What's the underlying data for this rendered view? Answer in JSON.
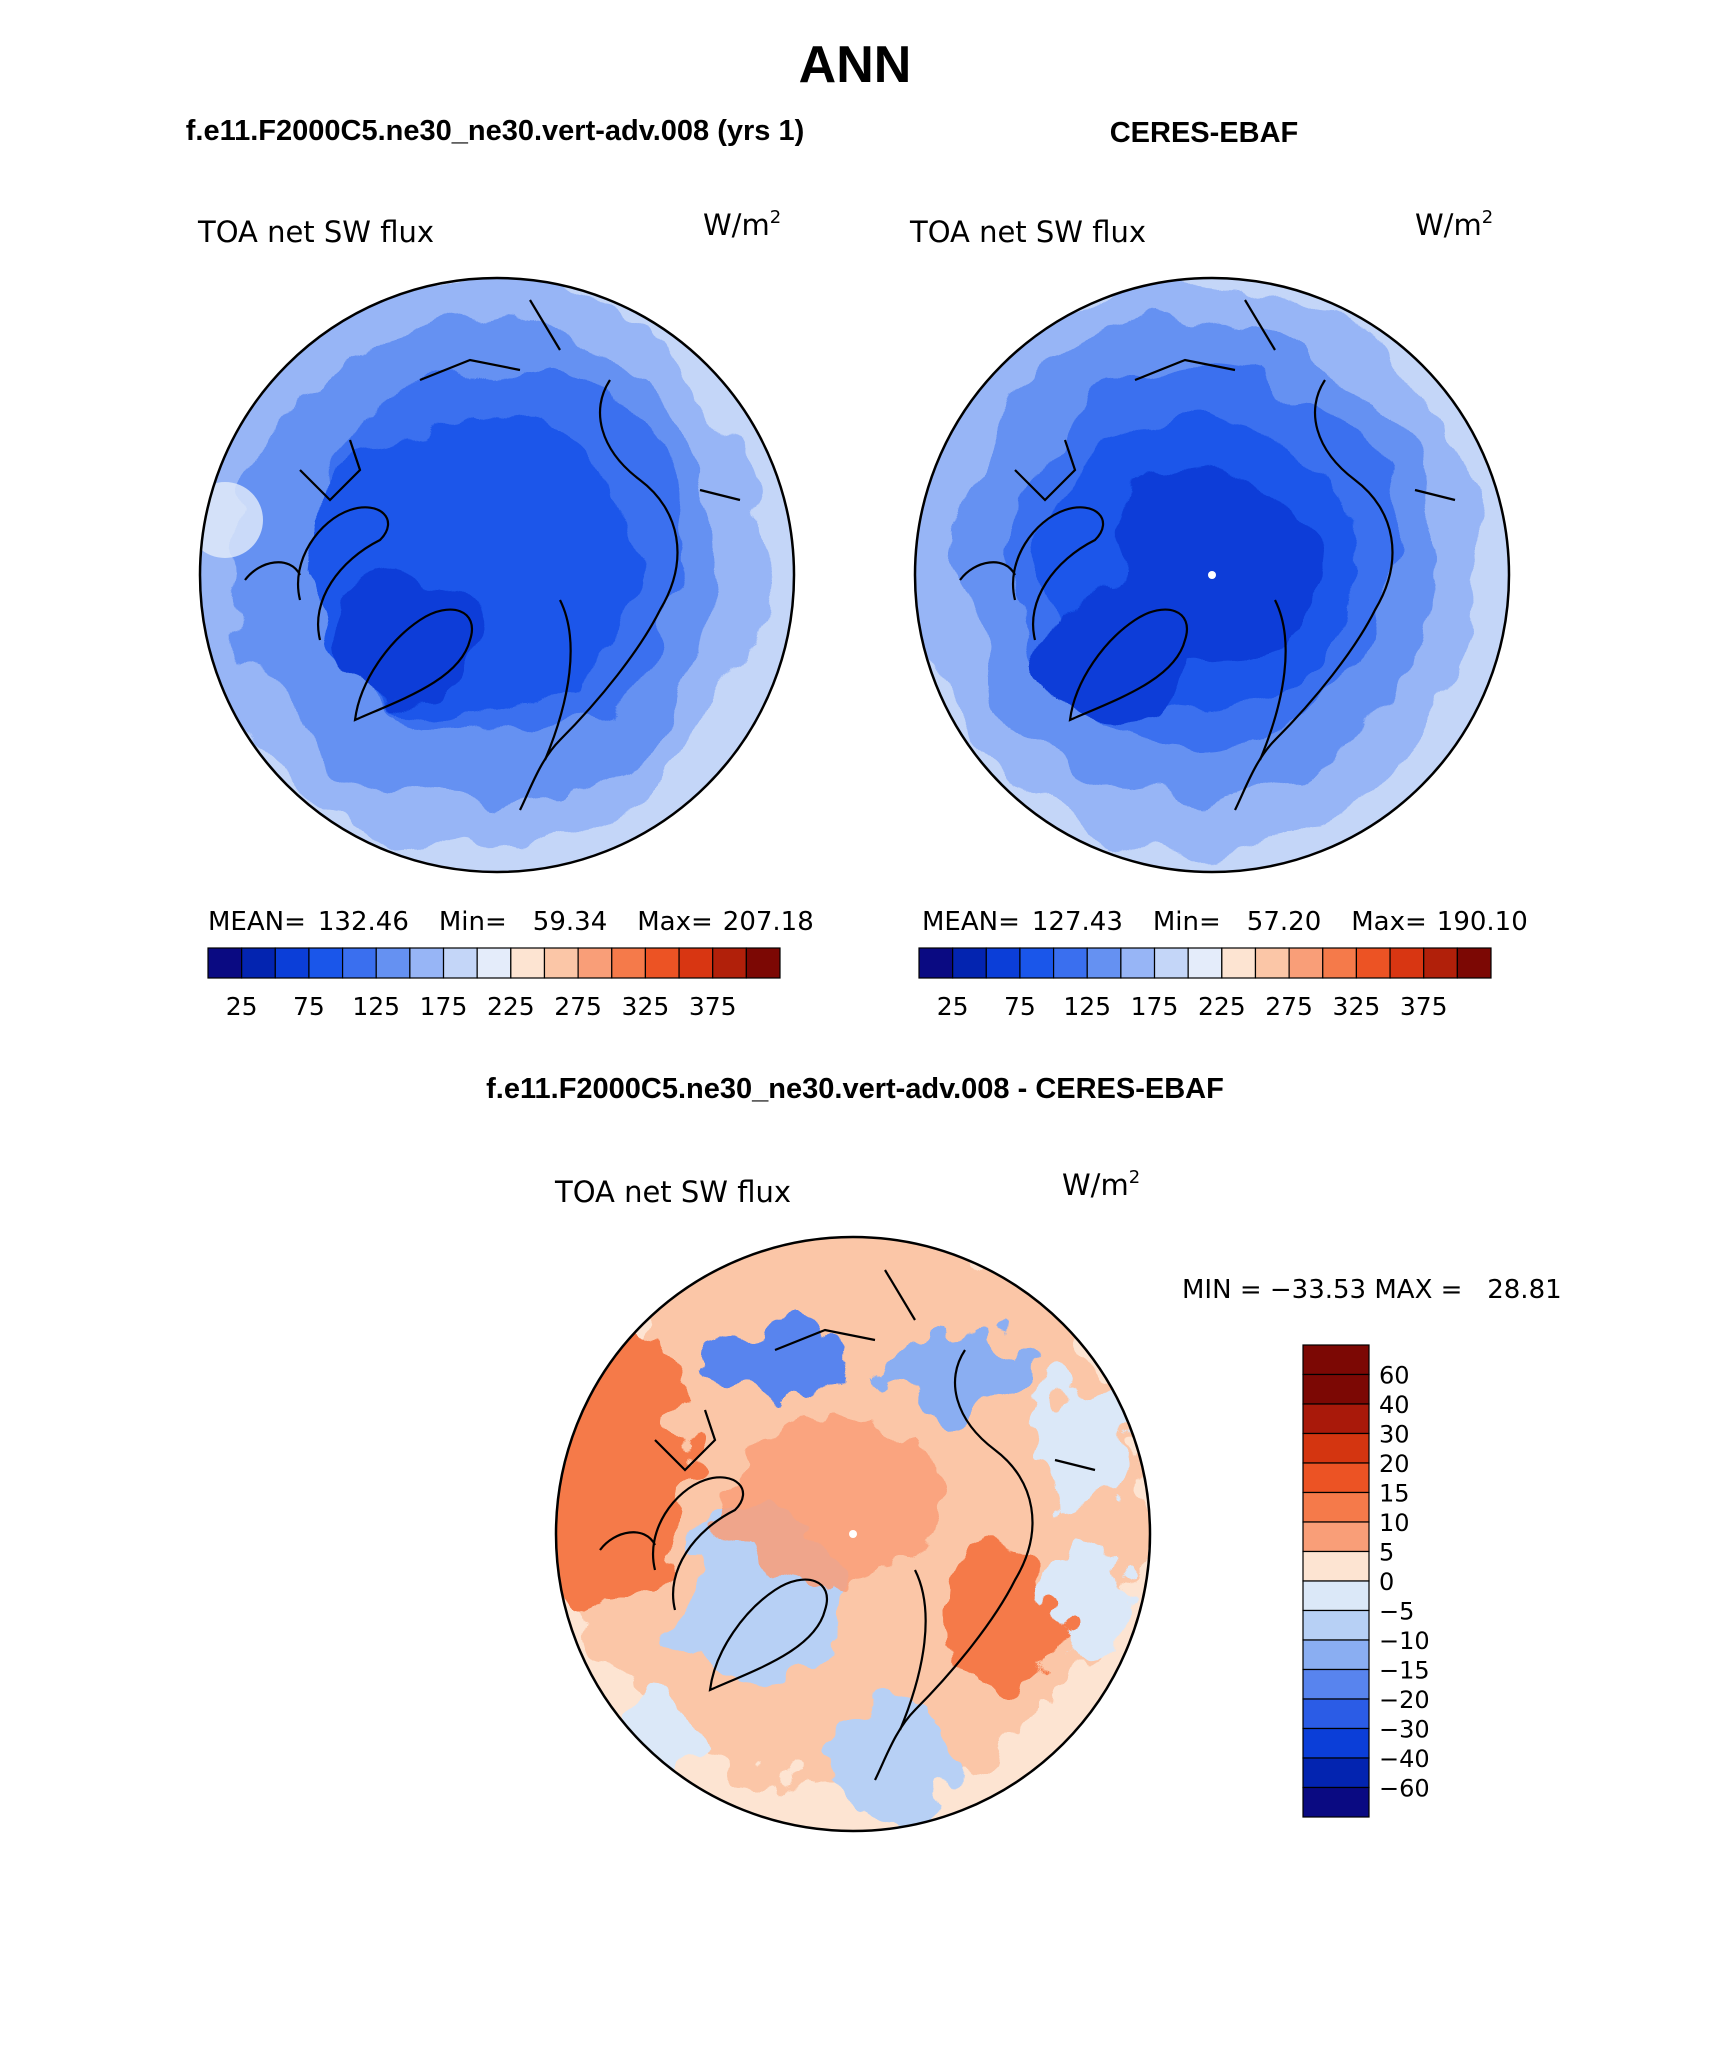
{
  "figure": {
    "title": "ANN",
    "diff_title": "f.e11.F2000C5.ne30_ne30.vert-adv.008 - CERES-EBAF"
  },
  "palettes": {
    "abs": [
      "#0a0a82",
      "#0324b0",
      "#0b3ed8",
      "#1a56ea",
      "#3a6fef",
      "#6591f2",
      "#97b5f6",
      "#c4d6f8",
      "#e4ecfa",
      "#fde4d2",
      "#fbc6a7",
      "#f99e78",
      "#f57a4a",
      "#ec5324",
      "#d83612",
      "#b1200a",
      "#7c0804"
    ],
    "diff": [
      "#7c0804",
      "#a9190a",
      "#d43510",
      "#ec5324",
      "#f57a4a",
      "#f99e78",
      "#fde4d2",
      "#dbe8f8",
      "#b7d0f5",
      "#8aaef2",
      "#5884ee",
      "#2b5ce6",
      "#0b3ed8",
      "#0324b0",
      "#0a0a82"
    ]
  },
  "panels": [
    {
      "id": "model",
      "case_title": "f.e11.F2000C5.ne30_ne30.vert-adv.008 (yrs 1)",
      "variable": "TOA net SW flux",
      "units_base": "W/m",
      "units_exp": "2",
      "mean_label": "MEAN=",
      "mean": "132.46",
      "min_label": "Min=",
      "min": "59.34",
      "max_label": "Max=",
      "max": "207.18",
      "contour_levels": [
        25,
        50,
        75,
        100,
        125,
        150,
        175,
        200,
        225,
        250,
        275,
        300,
        325,
        350,
        375
      ],
      "colorbar_labels": [
        "25",
        "75",
        "125",
        "175",
        "225",
        "275",
        "325",
        "375"
      ],
      "polar_pole_value": 60,
      "equatorward_value": 190
    },
    {
      "id": "obs",
      "case_title": "CERES-EBAF",
      "variable": "TOA net SW flux",
      "units_base": "W/m",
      "units_exp": "2",
      "mean_label": "MEAN=",
      "mean": "127.43",
      "min_label": "Min=",
      "min": "57.20",
      "max_label": "Max=",
      "max": "190.10",
      "contour_levels": [
        25,
        50,
        75,
        100,
        125,
        150,
        175,
        200,
        225,
        250,
        275,
        300,
        325,
        350,
        375
      ],
      "colorbar_labels": [
        "25",
        "75",
        "125",
        "175",
        "225",
        "275",
        "325",
        "375"
      ],
      "polar_pole_value": 57,
      "equatorward_value": 180
    }
  ],
  "difference": {
    "variable": "TOA net SW flux",
    "units_base": "W/m",
    "units_exp": "2",
    "min_max_text": "MIN = −33.53 MAX =   28.81",
    "min": -33.53,
    "max": 28.81,
    "colorbar_labels": [
      "60",
      "40",
      "30",
      "20",
      "15",
      "10",
      "5",
      "0",
      "−5",
      "−10",
      "−15",
      "−20",
      "−30",
      "−40",
      "−60"
    ]
  },
  "chart_data": [
    {
      "type": "heatmap",
      "title": "TOA net SW flux",
      "subtitle": "f.e11.F2000C5.ne30_ne30.vert-adv.008 (yrs 1)",
      "units": "W/m2",
      "projection": "north polar stereographic",
      "levels": [
        25,
        50,
        75,
        100,
        125,
        150,
        175,
        200,
        225,
        250,
        275,
        300,
        325,
        350,
        375
      ],
      "mean": 132.46,
      "min": 59.34,
      "max": 207.18
    },
    {
      "type": "heatmap",
      "title": "TOA net SW flux",
      "subtitle": "CERES-EBAF",
      "units": "W/m2",
      "projection": "north polar stereographic",
      "levels": [
        25,
        50,
        75,
        100,
        125,
        150,
        175,
        200,
        225,
        250,
        275,
        300,
        325,
        350,
        375
      ],
      "mean": 127.43,
      "min": 57.2,
      "max": 190.1
    },
    {
      "type": "heatmap",
      "title": "TOA net SW flux",
      "subtitle": "f.e11.F2000C5.ne30_ne30.vert-adv.008 - CERES-EBAF",
      "units": "W/m2",
      "projection": "north polar stereographic",
      "levels": [
        -60,
        -40,
        -30,
        -20,
        -15,
        -10,
        -5,
        0,
        5,
        10,
        15,
        20,
        30,
        40,
        60
      ],
      "min": -33.53,
      "max": 28.81
    }
  ]
}
